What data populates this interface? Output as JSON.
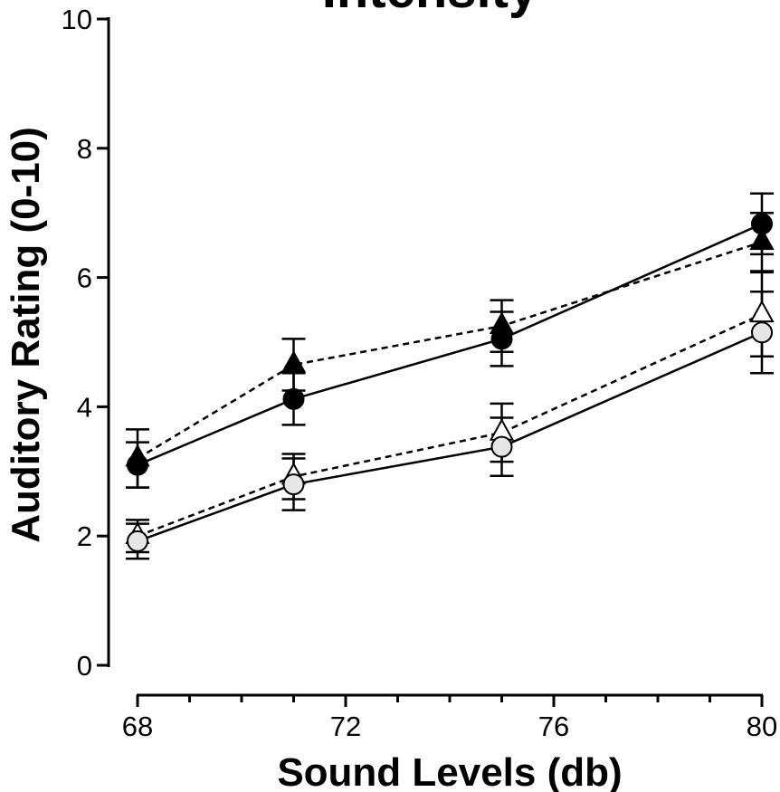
{
  "chart_data": {
    "type": "line",
    "title": "Intensity",
    "xlabel": "Sound Levels (db)",
    "ylabel": "Auditory Rating (0-10)",
    "xlim": [
      68,
      80
    ],
    "ylim": [
      0,
      10
    ],
    "x_ticks": [
      "68",
      "72",
      "76",
      "80"
    ],
    "y_ticks": [
      "0",
      "2",
      "4",
      "6",
      "8",
      "10"
    ],
    "x": [
      68,
      71,
      75,
      80
    ],
    "series": [
      {
        "marker": "circle",
        "fill": "#000000",
        "dash": "solid",
        "values": [
          3.1,
          4.12,
          5.05,
          6.83
        ],
        "errors": [
          0.35,
          0.4,
          0.42,
          0.47
        ]
      },
      {
        "marker": "triangle",
        "fill": "#000000",
        "dash": "dashed",
        "values": [
          3.2,
          4.65,
          5.25,
          6.55
        ],
        "errors": [
          0.45,
          0.4,
          0.4,
          0.45
        ]
      },
      {
        "marker": "triangle",
        "fill": "#ffffff",
        "dash": "dashed",
        "values": [
          2.0,
          2.92,
          3.6,
          5.43
        ],
        "errors": [
          0.25,
          0.35,
          0.45,
          0.65
        ]
      },
      {
        "marker": "circle",
        "fill": "#e6e6e6",
        "dash": "solid",
        "values": [
          1.92,
          2.8,
          3.38,
          5.15
        ],
        "errors": [
          0.27,
          0.4,
          0.45,
          0.63
        ]
      }
    ]
  }
}
